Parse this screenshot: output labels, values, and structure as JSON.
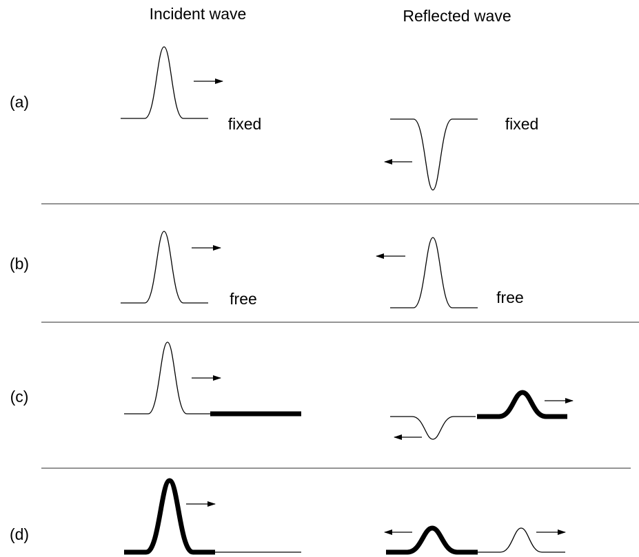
{
  "headers": {
    "incident": "Incident wave",
    "reflected": "Reflected wave"
  },
  "rows": [
    {
      "label": "(a)",
      "incident_note": "fixed",
      "reflected_note": "fixed"
    },
    {
      "label": "(b)",
      "incident_note": "free",
      "reflected_note": "free"
    },
    {
      "label": "(c)"
    },
    {
      "label": "(d)"
    }
  ]
}
